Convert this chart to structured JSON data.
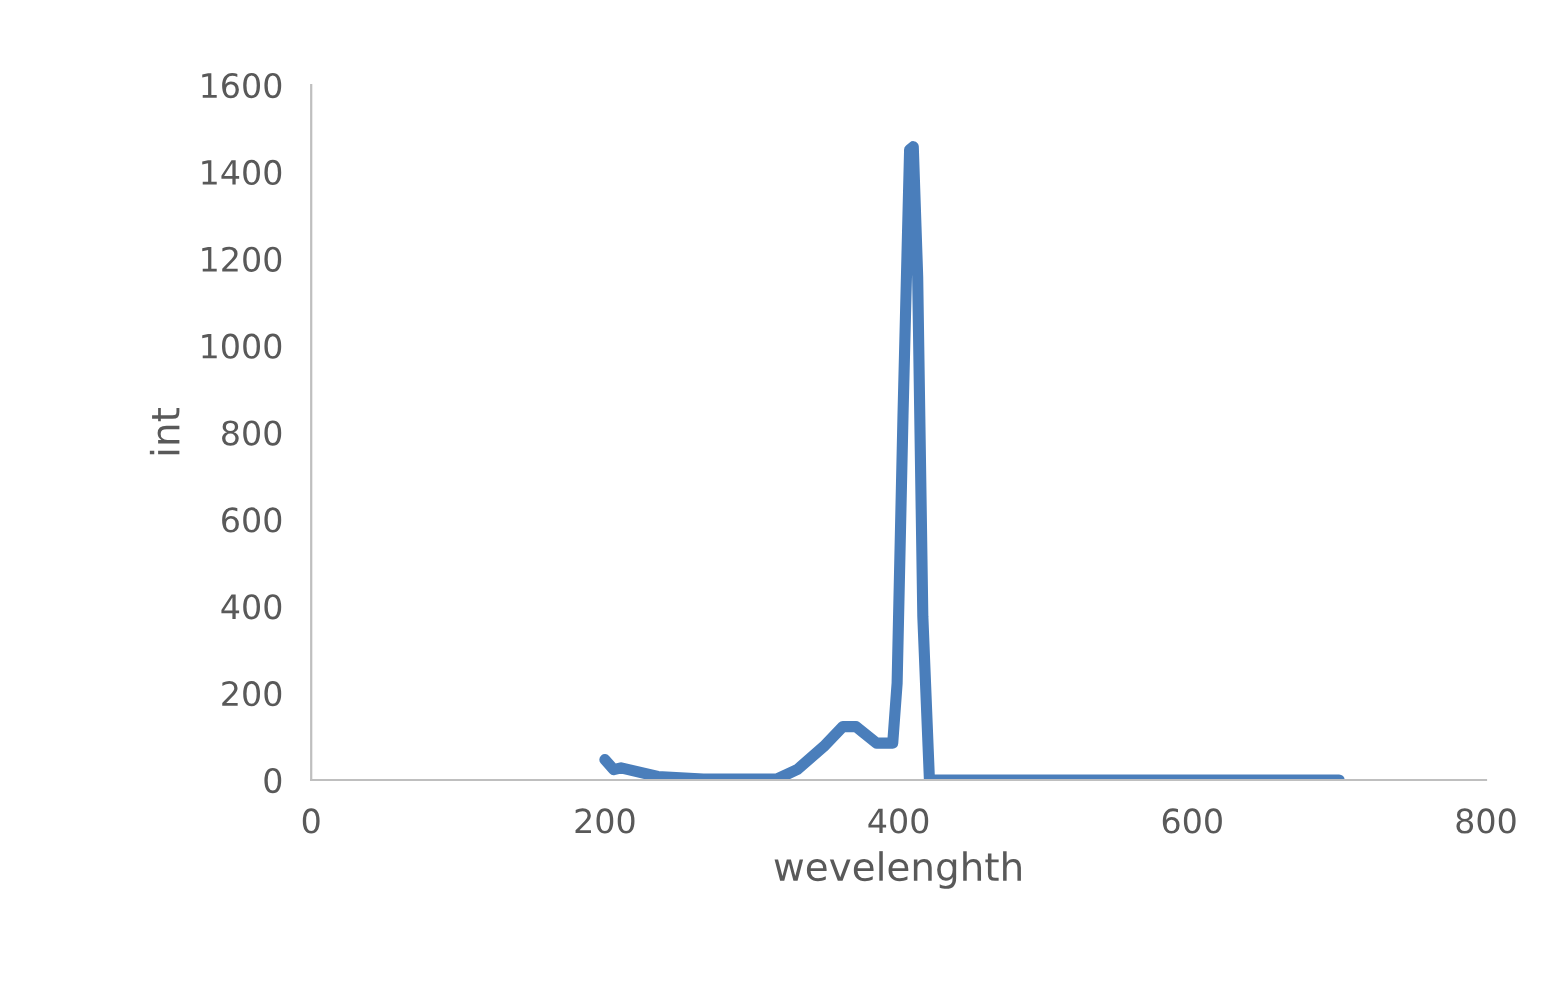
{
  "chart_data": {
    "type": "line",
    "xlabel": "wevelenghth",
    "ylabel": "int",
    "xlim": [
      0,
      800
    ],
    "xticks": [
      0,
      200,
      400,
      600,
      800
    ],
    "ylim": [
      0,
      1600
    ],
    "yticks": [
      0,
      200,
      400,
      600,
      800,
      1000,
      1200,
      1400,
      1600
    ],
    "grid": false,
    "legend": false,
    "marker": "none",
    "line_style": "solid",
    "series": [
      {
        "color": "#4a7ebb",
        "x": [
          200,
          206,
          211,
          236,
          267,
          317,
          331,
          349,
          362,
          371,
          385,
          396,
          399,
          403,
          407.5,
          410,
          413,
          416.5,
          421,
          430,
          500,
          600,
          700
        ],
        "values": [
          47,
          24,
          28,
          8,
          2,
          2,
          24,
          77,
          123,
          123,
          85,
          85,
          223,
          839,
          1451,
          1458,
          1158,
          377,
          0,
          0,
          0,
          0,
          0
        ]
      }
    ]
  }
}
